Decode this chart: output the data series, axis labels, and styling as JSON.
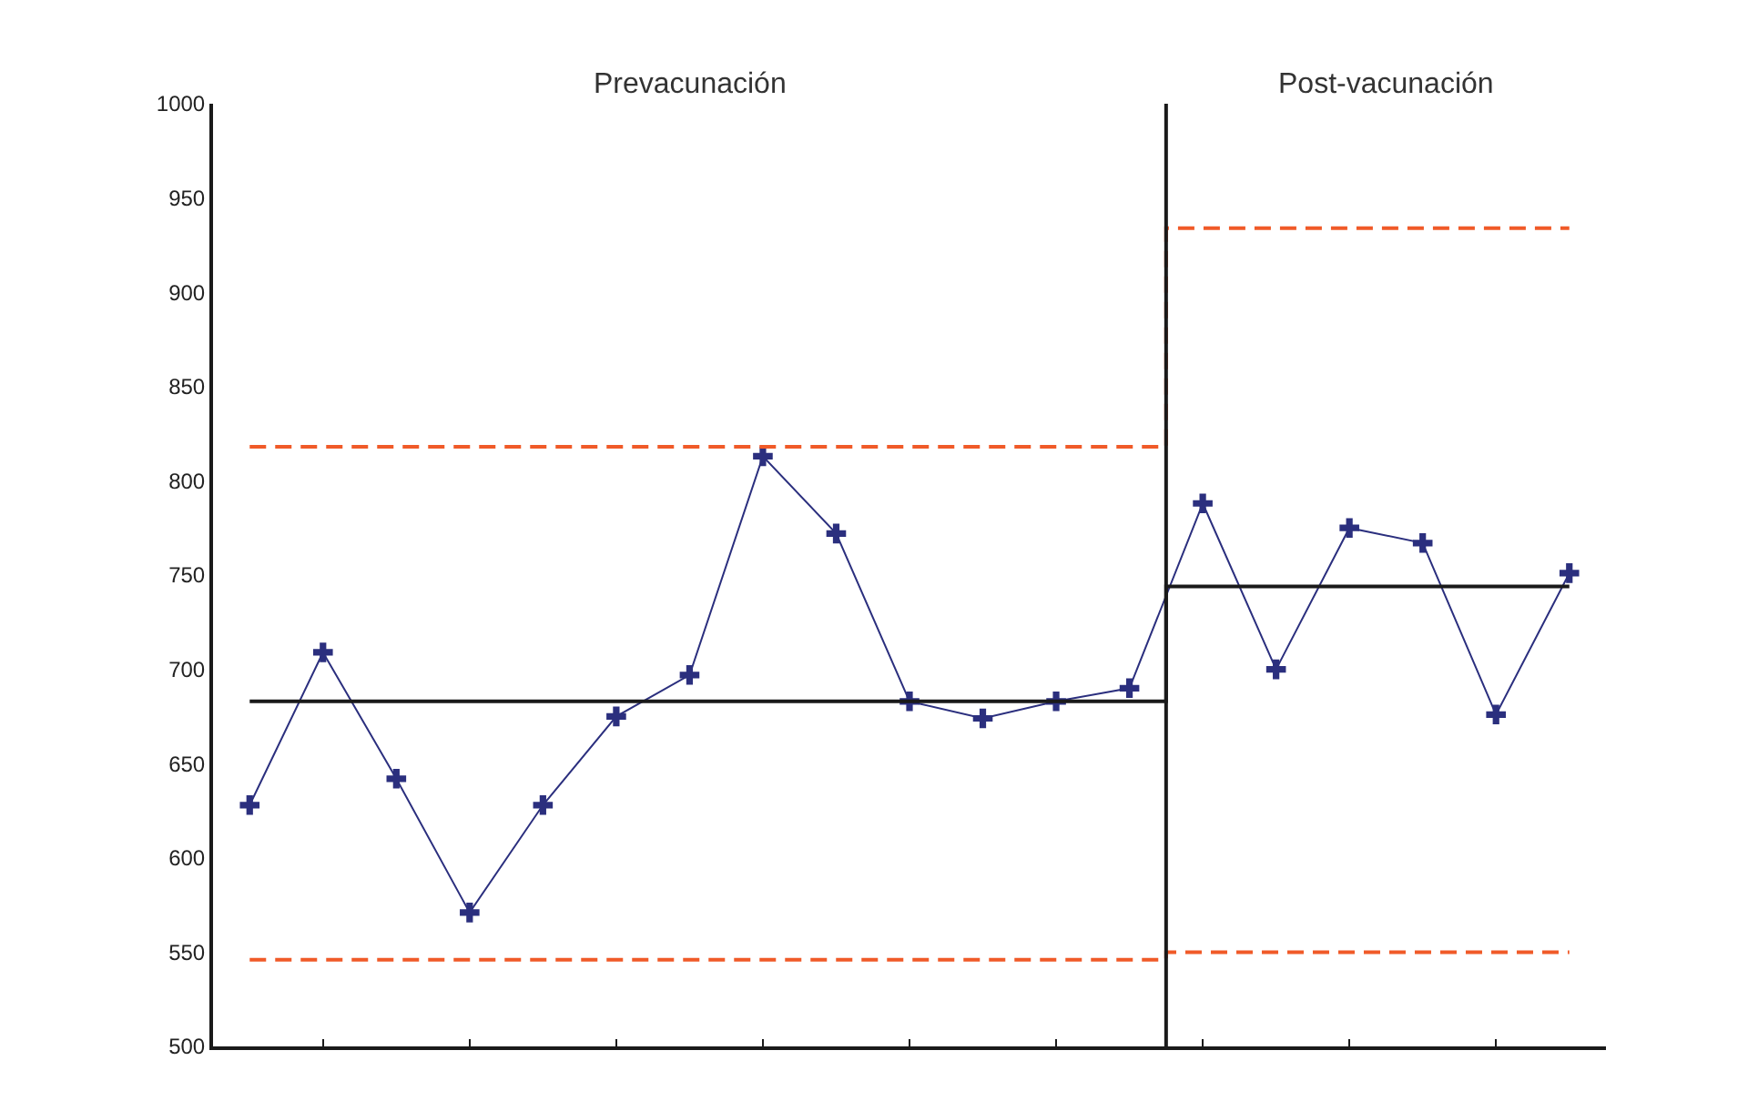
{
  "chart_data": {
    "type": "line",
    "categories": [
      null,
      null,
      null,
      null,
      null,
      null,
      null,
      null,
      null,
      null,
      null,
      null,
      null,
      null,
      null,
      null,
      null,
      null,
      null
    ],
    "series": [
      {
        "color": "#2b2f7e",
        "values": [
          628,
          709,
          642,
          571,
          628,
          675,
          697,
          813,
          772,
          683,
          674,
          683,
          690,
          788,
          700,
          775,
          767,
          676,
          751
        ],
        "marker": "cross",
        "line_style": "solid"
      },
      {
        "type": "step",
        "color": "#1a1a1a",
        "values": [
          683,
          683,
          683,
          683,
          683,
          683,
          683,
          683,
          683,
          683,
          683,
          683,
          683,
          744,
          744,
          744,
          744,
          744,
          744
        ],
        "marker": "none",
        "line_style": "solid"
      },
      {
        "type": "step",
        "color": "#f05a28",
        "values": [
          818,
          818,
          818,
          818,
          818,
          818,
          818,
          818,
          818,
          818,
          818,
          818,
          818,
          934,
          934,
          934,
          934,
          934,
          934
        ],
        "marker": "none",
        "line_style": "dashed"
      },
      {
        "type": "step",
        "color": "#f05a28",
        "values": [
          546,
          546,
          546,
          546,
          546,
          546,
          546,
          546,
          546,
          546,
          546,
          546,
          546,
          550,
          550,
          550,
          550,
          550,
          550
        ],
        "marker": "none",
        "line_style": "dashed"
      }
    ],
    "annotations": [
      "Prevacunación",
      "Post-vacunación"
    ],
    "ylim": [
      500,
      1000
    ],
    "yticks": [
      500,
      550,
      600,
      650,
      700,
      750,
      800,
      850,
      900,
      950,
      1000
    ],
    "tick_labels": "y"
  }
}
